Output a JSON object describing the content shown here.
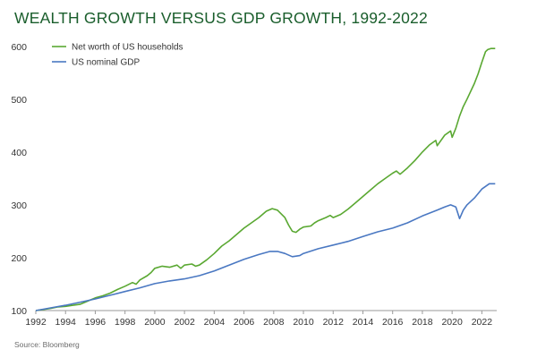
{
  "title": "WEALTH GROWTH VERSUS GDP GROWTH, 1992-2022",
  "source": "Source: Bloomberg",
  "colors": {
    "title": "#1a5e2c",
    "networth": "#5aa832",
    "gdp": "#4a78c2",
    "axis": "#9a9a9a"
  },
  "chart_data": {
    "type": "line",
    "title": "WEALTH GROWTH VERSUS GDP GROWTH, 1992-2022",
    "xlabel": "",
    "ylabel": "",
    "xlim": [
      1992,
      2023
    ],
    "ylim": [
      100,
      620
    ],
    "xticks": [
      "1992",
      "1994",
      "1996",
      "1998",
      "2000",
      "2002",
      "2004",
      "2006",
      "2008",
      "2010",
      "2012",
      "2014",
      "2016",
      "2018",
      "2020",
      "2022"
    ],
    "yticks": [
      "100",
      "200",
      "300",
      "400",
      "500",
      "600"
    ],
    "legend_position": "top-left",
    "grid": false,
    "series": [
      {
        "name": "Net worth of US households",
        "points": [
          [
            1992.0,
            100
          ],
          [
            1992.5,
            102
          ],
          [
            1993.0,
            104
          ],
          [
            1993.5,
            107
          ],
          [
            1994.0,
            108
          ],
          [
            1994.5,
            110
          ],
          [
            1995.0,
            112
          ],
          [
            1995.5,
            118
          ],
          [
            1996.0,
            124
          ],
          [
            1996.5,
            128
          ],
          [
            1997.0,
            133
          ],
          [
            1997.5,
            140
          ],
          [
            1998.0,
            146
          ],
          [
            1998.5,
            153
          ],
          [
            1998.75,
            150
          ],
          [
            1999.0,
            158
          ],
          [
            1999.5,
            166
          ],
          [
            1999.75,
            172
          ],
          [
            2000.0,
            180
          ],
          [
            2000.5,
            184
          ],
          [
            2001.0,
            182
          ],
          [
            2001.5,
            186
          ],
          [
            2001.75,
            180
          ],
          [
            2002.0,
            186
          ],
          [
            2002.5,
            188
          ],
          [
            2002.75,
            184
          ],
          [
            2003.0,
            186
          ],
          [
            2003.5,
            196
          ],
          [
            2004.0,
            208
          ],
          [
            2004.5,
            222
          ],
          [
            2005.0,
            232
          ],
          [
            2005.5,
            244
          ],
          [
            2006.0,
            256
          ],
          [
            2006.5,
            266
          ],
          [
            2007.0,
            276
          ],
          [
            2007.5,
            288
          ],
          [
            2007.9,
            293
          ],
          [
            2008.25,
            290
          ],
          [
            2008.75,
            276
          ],
          [
            2009.0,
            262
          ],
          [
            2009.25,
            250
          ],
          [
            2009.5,
            248
          ],
          [
            2009.75,
            254
          ],
          [
            2010.0,
            258
          ],
          [
            2010.5,
            260
          ],
          [
            2010.75,
            266
          ],
          [
            2011.0,
            270
          ],
          [
            2011.5,
            276
          ],
          [
            2011.8,
            280
          ],
          [
            2012.0,
            276
          ],
          [
            2012.5,
            282
          ],
          [
            2013.0,
            292
          ],
          [
            2013.5,
            304
          ],
          [
            2014.0,
            316
          ],
          [
            2014.5,
            328
          ],
          [
            2015.0,
            340
          ],
          [
            2015.5,
            350
          ],
          [
            2016.0,
            360
          ],
          [
            2016.25,
            364
          ],
          [
            2016.5,
            358
          ],
          [
            2017.0,
            370
          ],
          [
            2017.5,
            384
          ],
          [
            2018.0,
            400
          ],
          [
            2018.5,
            414
          ],
          [
            2018.9,
            422
          ],
          [
            2019.0,
            412
          ],
          [
            2019.5,
            432
          ],
          [
            2019.9,
            440
          ],
          [
            2020.0,
            428
          ],
          [
            2020.25,
            445
          ],
          [
            2020.5,
            468
          ],
          [
            2020.75,
            486
          ],
          [
            2021.0,
            500
          ],
          [
            2021.5,
            530
          ],
          [
            2021.75,
            548
          ],
          [
            2022.0,
            570
          ],
          [
            2022.25,
            590
          ],
          [
            2022.4,
            594
          ],
          [
            2022.6,
            596
          ],
          [
            2022.9,
            596
          ]
        ]
      },
      {
        "name": "US nominal GDP",
        "points": [
          [
            1992.0,
            100
          ],
          [
            1993.0,
            105
          ],
          [
            1994.0,
            110
          ],
          [
            1995.0,
            116
          ],
          [
            1996.0,
            122
          ],
          [
            1997.0,
            129
          ],
          [
            1998.0,
            136
          ],
          [
            1999.0,
            143
          ],
          [
            2000.0,
            151
          ],
          [
            2001.0,
            156
          ],
          [
            2002.0,
            160
          ],
          [
            2003.0,
            166
          ],
          [
            2004.0,
            175
          ],
          [
            2005.0,
            186
          ],
          [
            2006.0,
            197
          ],
          [
            2007.0,
            206
          ],
          [
            2007.75,
            212
          ],
          [
            2008.25,
            212
          ],
          [
            2008.75,
            208
          ],
          [
            2009.25,
            202
          ],
          [
            2009.75,
            204
          ],
          [
            2010.0,
            208
          ],
          [
            2011.0,
            217
          ],
          [
            2012.0,
            224
          ],
          [
            2013.0,
            231
          ],
          [
            2014.0,
            240
          ],
          [
            2015.0,
            249
          ],
          [
            2016.0,
            256
          ],
          [
            2017.0,
            266
          ],
          [
            2018.0,
            279
          ],
          [
            2019.0,
            290
          ],
          [
            2019.5,
            296
          ],
          [
            2019.9,
            300
          ],
          [
            2020.25,
            296
          ],
          [
            2020.5,
            274
          ],
          [
            2020.75,
            290
          ],
          [
            2021.0,
            300
          ],
          [
            2021.5,
            313
          ],
          [
            2022.0,
            330
          ],
          [
            2022.5,
            340
          ],
          [
            2022.9,
            340
          ]
        ]
      }
    ]
  }
}
